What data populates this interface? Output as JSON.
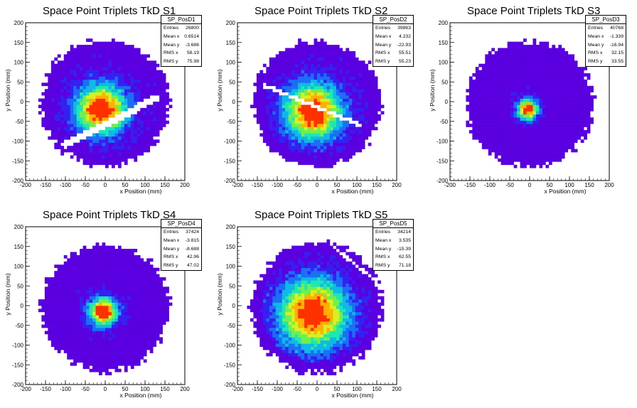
{
  "chart_data": [
    {
      "type": "heatmap",
      "title": "Space Point Triplets TkD S1",
      "xlabel": "x Position (mm)",
      "ylabel": "y Position (mm)",
      "xlim": [
        -200,
        200
      ],
      "ylim": [
        -200,
        200
      ],
      "xticks": [
        -200,
        -150,
        -100,
        -50,
        0,
        50,
        100,
        150,
        200
      ],
      "yticks": [
        -200,
        -150,
        -100,
        -50,
        0,
        50,
        100,
        150,
        200
      ],
      "stats": {
        "name": "SP_PosD1",
        "rows": [
          {
            "label": "Entries",
            "value": "26800"
          },
          {
            "label": "Mean x",
            "value": "0.6514"
          },
          {
            "label": "Mean y",
            "value": "-3.686"
          },
          {
            "label": "RMS x",
            "value": "58.19"
          },
          {
            "label": "RMS y",
            "value": "75.98"
          }
        ]
      },
      "colormap": [
        "#5a00e0",
        "#3420f0",
        "#1a6ff5",
        "#10b8e8",
        "#1ee8b0",
        "#70f050",
        "#d8f020",
        "#ffb000",
        "#ff3000"
      ],
      "hotspot": [
        -10,
        -20
      ],
      "core_sigma": 45,
      "radius": 160,
      "gaps": [
        {
          "x1": -100,
          "y1": -110,
          "x2": 130,
          "y2": 10,
          "halfwidth": 9
        }
      ]
    },
    {
      "type": "heatmap",
      "title": "Space Point Triplets TkD S2",
      "xlabel": "x Position (mm)",
      "ylabel": "y Position (mm)",
      "xlim": [
        -200,
        200
      ],
      "ylim": [
        -200,
        200
      ],
      "xticks": [
        -200,
        -150,
        -100,
        -50,
        0,
        50,
        100,
        150,
        200
      ],
      "yticks": [
        -200,
        -150,
        -100,
        -50,
        0,
        50,
        100,
        150,
        200
      ],
      "stats": {
        "name": "SP_PosD2",
        "rows": [
          {
            "label": "Entries",
            "value": "39863"
          },
          {
            "label": "Mean x",
            "value": "4.232"
          },
          {
            "label": "Mean y",
            "value": "-22.93"
          },
          {
            "label": "RMS x",
            "value": "55.51"
          },
          {
            "label": "RMS y",
            "value": "55.23"
          }
        ]
      },
      "colormap": [
        "#5a00e0",
        "#3420f0",
        "#1a6ff5",
        "#10b8e8",
        "#1ee8b0",
        "#70f050",
        "#d8f020",
        "#ffb000",
        "#ff3000"
      ],
      "hotspot": [
        -10,
        -25
      ],
      "core_sigma": 50,
      "radius": 160,
      "gaps": [
        {
          "x1": -130,
          "y1": 40,
          "x2": 110,
          "y2": -60,
          "halfwidth": 5
        }
      ]
    },
    {
      "type": "heatmap",
      "title": "Space Point Triplets TkD S3",
      "xlabel": "x Position (mm)",
      "ylabel": "y Position (mm)",
      "xlim": [
        -200,
        200
      ],
      "ylim": [
        -200,
        200
      ],
      "xticks": [
        -200,
        -150,
        -100,
        -50,
        0,
        50,
        100,
        150,
        200
      ],
      "yticks": [
        -200,
        -150,
        -100,
        -50,
        0,
        50,
        100,
        150,
        200
      ],
      "stats": {
        "name": "SP_PosD3",
        "rows": [
          {
            "label": "Entries",
            "value": "40768"
          },
          {
            "label": "Mean x",
            "value": "-1.339"
          },
          {
            "label": "Mean y",
            "value": "-16.94"
          },
          {
            "label": "RMS x",
            "value": "32.15"
          },
          {
            "label": "RMS y",
            "value": "33.55"
          }
        ]
      },
      "colormap": [
        "#5a00e0",
        "#3420f0",
        "#1a6ff5",
        "#10b8e8",
        "#1ee8b0",
        "#70f050",
        "#d8f020",
        "#ffb000",
        "#ff3000"
      ],
      "hotspot": [
        -5,
        -20
      ],
      "core_sigma": 18,
      "radius": 160,
      "gaps": []
    },
    {
      "type": "heatmap",
      "title": "Space Point Triplets TkD S4",
      "xlabel": "x Position (mm)",
      "ylabel": "y Position (mm)",
      "xlim": [
        -200,
        200
      ],
      "ylim": [
        -200,
        200
      ],
      "xticks": [
        -200,
        -150,
        -100,
        -50,
        0,
        50,
        100,
        150,
        200
      ],
      "yticks": [
        -200,
        -150,
        -100,
        -50,
        0,
        50,
        100,
        150,
        200
      ],
      "stats": {
        "name": "SP_PosD4",
        "rows": [
          {
            "label": "Entries",
            "value": "37424"
          },
          {
            "label": "Mean x",
            "value": "-3.815"
          },
          {
            "label": "Mean y",
            "value": "-8.688"
          },
          {
            "label": "RMS x",
            "value": "42.96"
          },
          {
            "label": "RMS y",
            "value": "47.02"
          }
        ]
      },
      "colormap": [
        "#5a00e0",
        "#3420f0",
        "#1a6ff5",
        "#10b8e8",
        "#1ee8b0",
        "#70f050",
        "#d8f020",
        "#ffb000",
        "#ff3000"
      ],
      "hotspot": [
        -5,
        -15
      ],
      "core_sigma": 25,
      "radius": 160,
      "gaps": []
    },
    {
      "type": "heatmap",
      "title": "Space Point Triplets TkD S5",
      "xlabel": "x Position (mm)",
      "ylabel": "y Position (mm)",
      "xlim": [
        -200,
        200
      ],
      "ylim": [
        -200,
        200
      ],
      "xticks": [
        -200,
        -150,
        -100,
        -50,
        0,
        50,
        100,
        150,
        200
      ],
      "yticks": [
        -200,
        -150,
        -100,
        -50,
        0,
        50,
        100,
        150,
        200
      ],
      "stats": {
        "name": "SP_PosD5",
        "rows": [
          {
            "label": "Entries",
            "value": "34214"
          },
          {
            "label": "Mean x",
            "value": "3.535"
          },
          {
            "label": "Mean y",
            "value": "-15.39"
          },
          {
            "label": "RMS x",
            "value": "62.55"
          },
          {
            "label": "RMS y",
            "value": "71.18"
          }
        ]
      },
      "colormap": [
        "#5a00e0",
        "#3420f0",
        "#1a6ff5",
        "#10b8e8",
        "#1ee8b0",
        "#70f050",
        "#d8f020",
        "#ffb000",
        "#ff3000"
      ],
      "hotspot": [
        -10,
        -20
      ],
      "core_sigma": 60,
      "radius": 165,
      "gaps": [
        {
          "x1": 40,
          "y1": 150,
          "x2": 150,
          "y2": 60,
          "halfwidth": 4
        }
      ]
    }
  ]
}
